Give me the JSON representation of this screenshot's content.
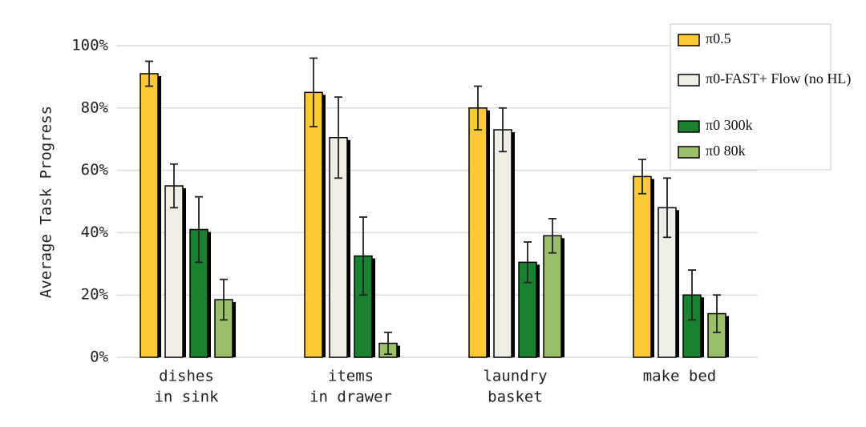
{
  "chart_data": {
    "type": "bar",
    "y_label": "Average Task Progress",
    "categories": [
      [
        "dishes",
        "in sink"
      ],
      [
        "items",
        "in drawer"
      ],
      [
        "laundry",
        "basket"
      ],
      [
        "make bed"
      ]
    ],
    "series": [
      {
        "name": "π0.5",
        "color": "#fdca35",
        "values": [
          91,
          85,
          80,
          58
        ],
        "errors": [
          4,
          11,
          7,
          5.5
        ]
      },
      {
        "name": "π0-FAST+ Flow (no HL)",
        "color": "#efede6",
        "values": [
          55,
          70.5,
          73,
          48
        ],
        "errors": [
          7,
          13,
          7,
          9.5
        ]
      },
      {
        "name": "π0 300k",
        "color": "#1a8130",
        "values": [
          41,
          32.5,
          30.5,
          20
        ],
        "errors": [
          10.5,
          12.5,
          6.5,
          8
        ]
      },
      {
        "name": "π0 80k",
        "color": "#9cbf6c",
        "values": [
          18.5,
          4.5,
          39,
          14
        ],
        "errors": [
          6.5,
          3.5,
          5.5,
          6
        ]
      }
    ],
    "ylim": [
      0,
      100
    ],
    "yticks": [
      {
        "value": 0,
        "label": "0%"
      },
      {
        "value": 20,
        "label": "20%"
      },
      {
        "value": 40,
        "label": "40%"
      },
      {
        "value": 60,
        "label": "60%"
      },
      {
        "value": 80,
        "label": "80%"
      },
      {
        "value": 100,
        "label": "100%"
      }
    ],
    "grid": true,
    "legend": "upper right"
  }
}
